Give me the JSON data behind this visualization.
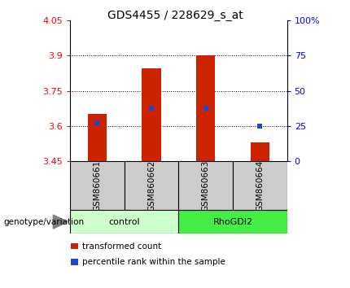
{
  "title": "GDS4455 / 228629_s_at",
  "samples": [
    "GSM860661",
    "GSM860662",
    "GSM860663",
    "GSM860664"
  ],
  "bar_bottoms": [
    3.45,
    3.45,
    3.45,
    3.45
  ],
  "bar_tops": [
    3.65,
    3.845,
    3.9,
    3.53
  ],
  "percentile_values": [
    3.615,
    3.675,
    3.675,
    3.6
  ],
  "ylim": [
    3.45,
    4.05
  ],
  "yticks_left": [
    3.45,
    3.6,
    3.75,
    3.9,
    4.05
  ],
  "yticks_right_vals": [
    3.45,
    3.6,
    3.75,
    3.9,
    4.05
  ],
  "yticks_right_labels": [
    "0",
    "25",
    "50",
    "75",
    "100%"
  ],
  "gridline_vals": [
    3.6,
    3.75,
    3.9
  ],
  "bar_color": "#cc2200",
  "percentile_color": "#2244cc",
  "bar_width": 0.35,
  "control_color": "#ccffcc",
  "rhogdi_color": "#44ee44",
  "sample_area_color": "#cccccc",
  "group_label": "genotype/variation",
  "legend_items": [
    {
      "label": "transformed count",
      "color": "#cc2200"
    },
    {
      "label": "percentile rank within the sample",
      "color": "#2244cc"
    }
  ],
  "title_fontsize": 10,
  "tick_fontsize": 8,
  "sample_fontsize": 7.5,
  "group_fontsize": 8,
  "legend_fontsize": 7.5
}
